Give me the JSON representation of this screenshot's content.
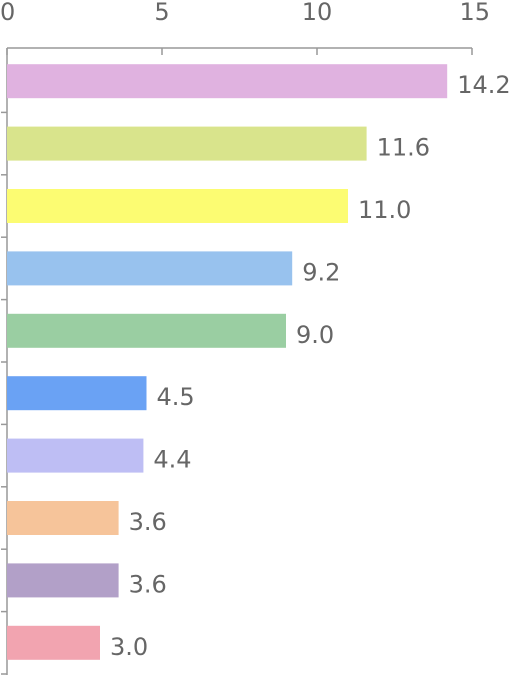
{
  "chart_data": {
    "type": "hbar",
    "categories": [
      null,
      null,
      null,
      null,
      null,
      null,
      null,
      null,
      null,
      null
    ],
    "values": [
      14.2,
      11.6,
      11.0,
      9.2,
      9.0,
      4.5,
      4.4,
      3.6,
      3.6,
      3.0
    ],
    "value_labels": [
      "14.2",
      "11.6",
      "11.0",
      "9.2",
      "9.0",
      "4.5",
      "4.4",
      "3.6",
      "3.6",
      "3.0"
    ],
    "colors": [
      "#e0b2e0",
      "#d9e48c",
      "#fcfc72",
      "#98c2ee",
      "#9acea2",
      "#6aa2f4",
      "#bebef4",
      "#f6c49a",
      "#b2a0c8",
      "#f2a4b0"
    ],
    "xlim": [
      0,
      15
    ],
    "xticks": [
      0,
      5,
      10,
      15
    ]
  }
}
